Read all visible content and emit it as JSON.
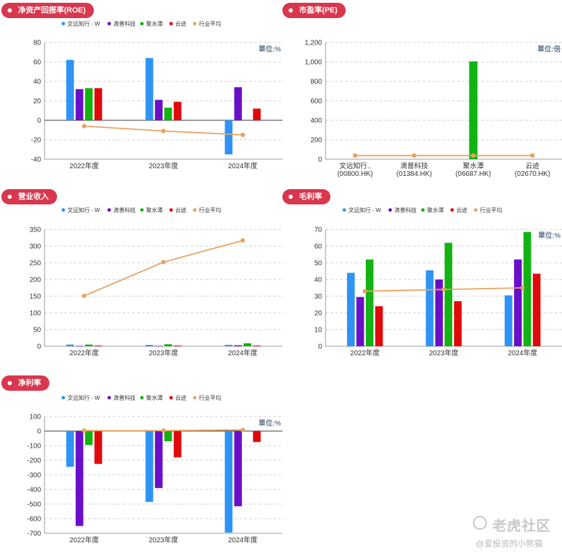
{
  "legend_items": [
    {
      "name": "文远知行 - W",
      "color": "#2e93f5"
    },
    {
      "name": "滴普科技",
      "color": "#6a0fc9"
    },
    {
      "name": "聚水潭",
      "color": "#12b312"
    },
    {
      "name": "云迹",
      "color": "#e10a0a"
    },
    {
      "name": "行业平均",
      "color": "#e8a262"
    }
  ],
  "watermark": {
    "brand": "老虎社区",
    "author": "@爱投资的小熊猫"
  },
  "chart_data": [
    {
      "id": "roe",
      "title": "净资产回报率(ROE)",
      "type": "bar",
      "unit_label": "單位:%",
      "categories": [
        "2022年度",
        "2023年度",
        "2024年度"
      ],
      "ylim": [
        -40,
        80
      ],
      "yticks": [
        -40,
        -20,
        0,
        20,
        40,
        60,
        80
      ],
      "legend": true,
      "series": [
        {
          "name": "文远知行 - W",
          "color": "#2e93f5",
          "values": [
            62,
            64,
            -35
          ]
        },
        {
          "name": "滴普科技",
          "color": "#6a0fc9",
          "values": [
            32,
            21,
            34
          ]
        },
        {
          "name": "聚水潭",
          "color": "#12b312",
          "values": [
            33,
            13,
            null
          ]
        },
        {
          "name": "云迹",
          "color": "#e10a0a",
          "values": [
            33,
            19,
            12
          ]
        }
      ],
      "line": {
        "name": "行业平均",
        "color": "#e8a262",
        "values": [
          -6,
          -11,
          -15
        ]
      }
    },
    {
      "id": "pe",
      "title": "市盈率(PE)",
      "type": "bar",
      "unit_label": "單位:倍",
      "categories": [
        "文远知行..\n(00800.HK)",
        "滴普科技\n(01384.HK)",
        "聚水潭\n(06687.HK)",
        "云迹\n(02670.HK)"
      ],
      "ylim": [
        0,
        1200
      ],
      "yticks": [
        0,
        200,
        400,
        600,
        800,
        1000,
        1200
      ],
      "ytick_labels": [
        "0",
        "200",
        "400",
        "600",
        "800",
        "1,000",
        "1,200"
      ],
      "legend": false,
      "single": {
        "color": "#12b312",
        "values": [
          null,
          null,
          1005,
          null
        ]
      },
      "line": {
        "name": "行业平均",
        "color": "#e8a262",
        "values": [
          38,
          38,
          38,
          38
        ]
      }
    },
    {
      "id": "revenue",
      "title": "营业收入",
      "type": "bar",
      "unit_label": "",
      "categories": [
        "2022年度",
        "2023年度",
        "2024年度"
      ],
      "ylim": [
        0,
        350
      ],
      "yticks": [
        0,
        50,
        100,
        150,
        200,
        250,
        300,
        350
      ],
      "legend": true,
      "series": [
        {
          "name": "文远知行 - W",
          "color": "#2e93f5",
          "values": [
            5,
            4,
            4
          ]
        },
        {
          "name": "滴普科技",
          "color": "#6a0fc9",
          "values": [
            1,
            1,
            3
          ]
        },
        {
          "name": "聚水潭",
          "color": "#12b312",
          "values": [
            5,
            6,
            9
          ]
        },
        {
          "name": "云迹",
          "color": "#e10a0a",
          "values": [
            2,
            2,
            2
          ]
        }
      ],
      "line": {
        "name": "行业平均",
        "color": "#e8a262",
        "values": [
          151,
          252,
          317
        ]
      }
    },
    {
      "id": "gross_margin",
      "title": "毛利率",
      "type": "bar",
      "unit_label": "單位:%",
      "categories": [
        "2022年度",
        "2023年度",
        "2024年度"
      ],
      "ylim": [
        0,
        70
      ],
      "yticks": [
        0,
        10,
        20,
        30,
        40,
        50,
        60,
        70
      ],
      "legend": true,
      "series": [
        {
          "name": "文远知行 - W",
          "color": "#2e93f5",
          "values": [
            44,
            45.5,
            30.5
          ]
        },
        {
          "name": "滴普科技",
          "color": "#6a0fc9",
          "values": [
            29.5,
            40,
            52
          ]
        },
        {
          "name": "聚水潭",
          "color": "#12b312",
          "values": [
            52,
            62,
            68.5
          ]
        },
        {
          "name": "云迹",
          "color": "#e10a0a",
          "values": [
            24,
            27,
            43.5
          ]
        }
      ],
      "line": {
        "name": "行业平均",
        "color": "#e8a262",
        "values": [
          33,
          34,
          35
        ]
      }
    },
    {
      "id": "net_margin",
      "title": "净利率",
      "type": "bar",
      "unit_label": "單位:%",
      "categories": [
        "2022年度",
        "2023年度",
        "2024年度"
      ],
      "ylim": [
        -700,
        100
      ],
      "yticks": [
        -700,
        -600,
        -500,
        -400,
        -300,
        -200,
        -100,
        0,
        100
      ],
      "legend": true,
      "series": [
        {
          "name": "文远知行 - W",
          "color": "#2e93f5",
          "values": [
            -245,
            -485,
            -695
          ]
        },
        {
          "name": "滴普科技",
          "color": "#6a0fc9",
          "values": [
            -650,
            -390,
            -515
          ]
        },
        {
          "name": "聚水潭",
          "color": "#12b312",
          "values": [
            -95,
            -70,
            null
          ]
        },
        {
          "name": "云迹",
          "color": "#e10a0a",
          "values": [
            -225,
            -180,
            -75
          ]
        }
      ],
      "line": {
        "name": "行业平均",
        "color": "#e8a262",
        "values": [
          3,
          3,
          8
        ]
      }
    }
  ]
}
